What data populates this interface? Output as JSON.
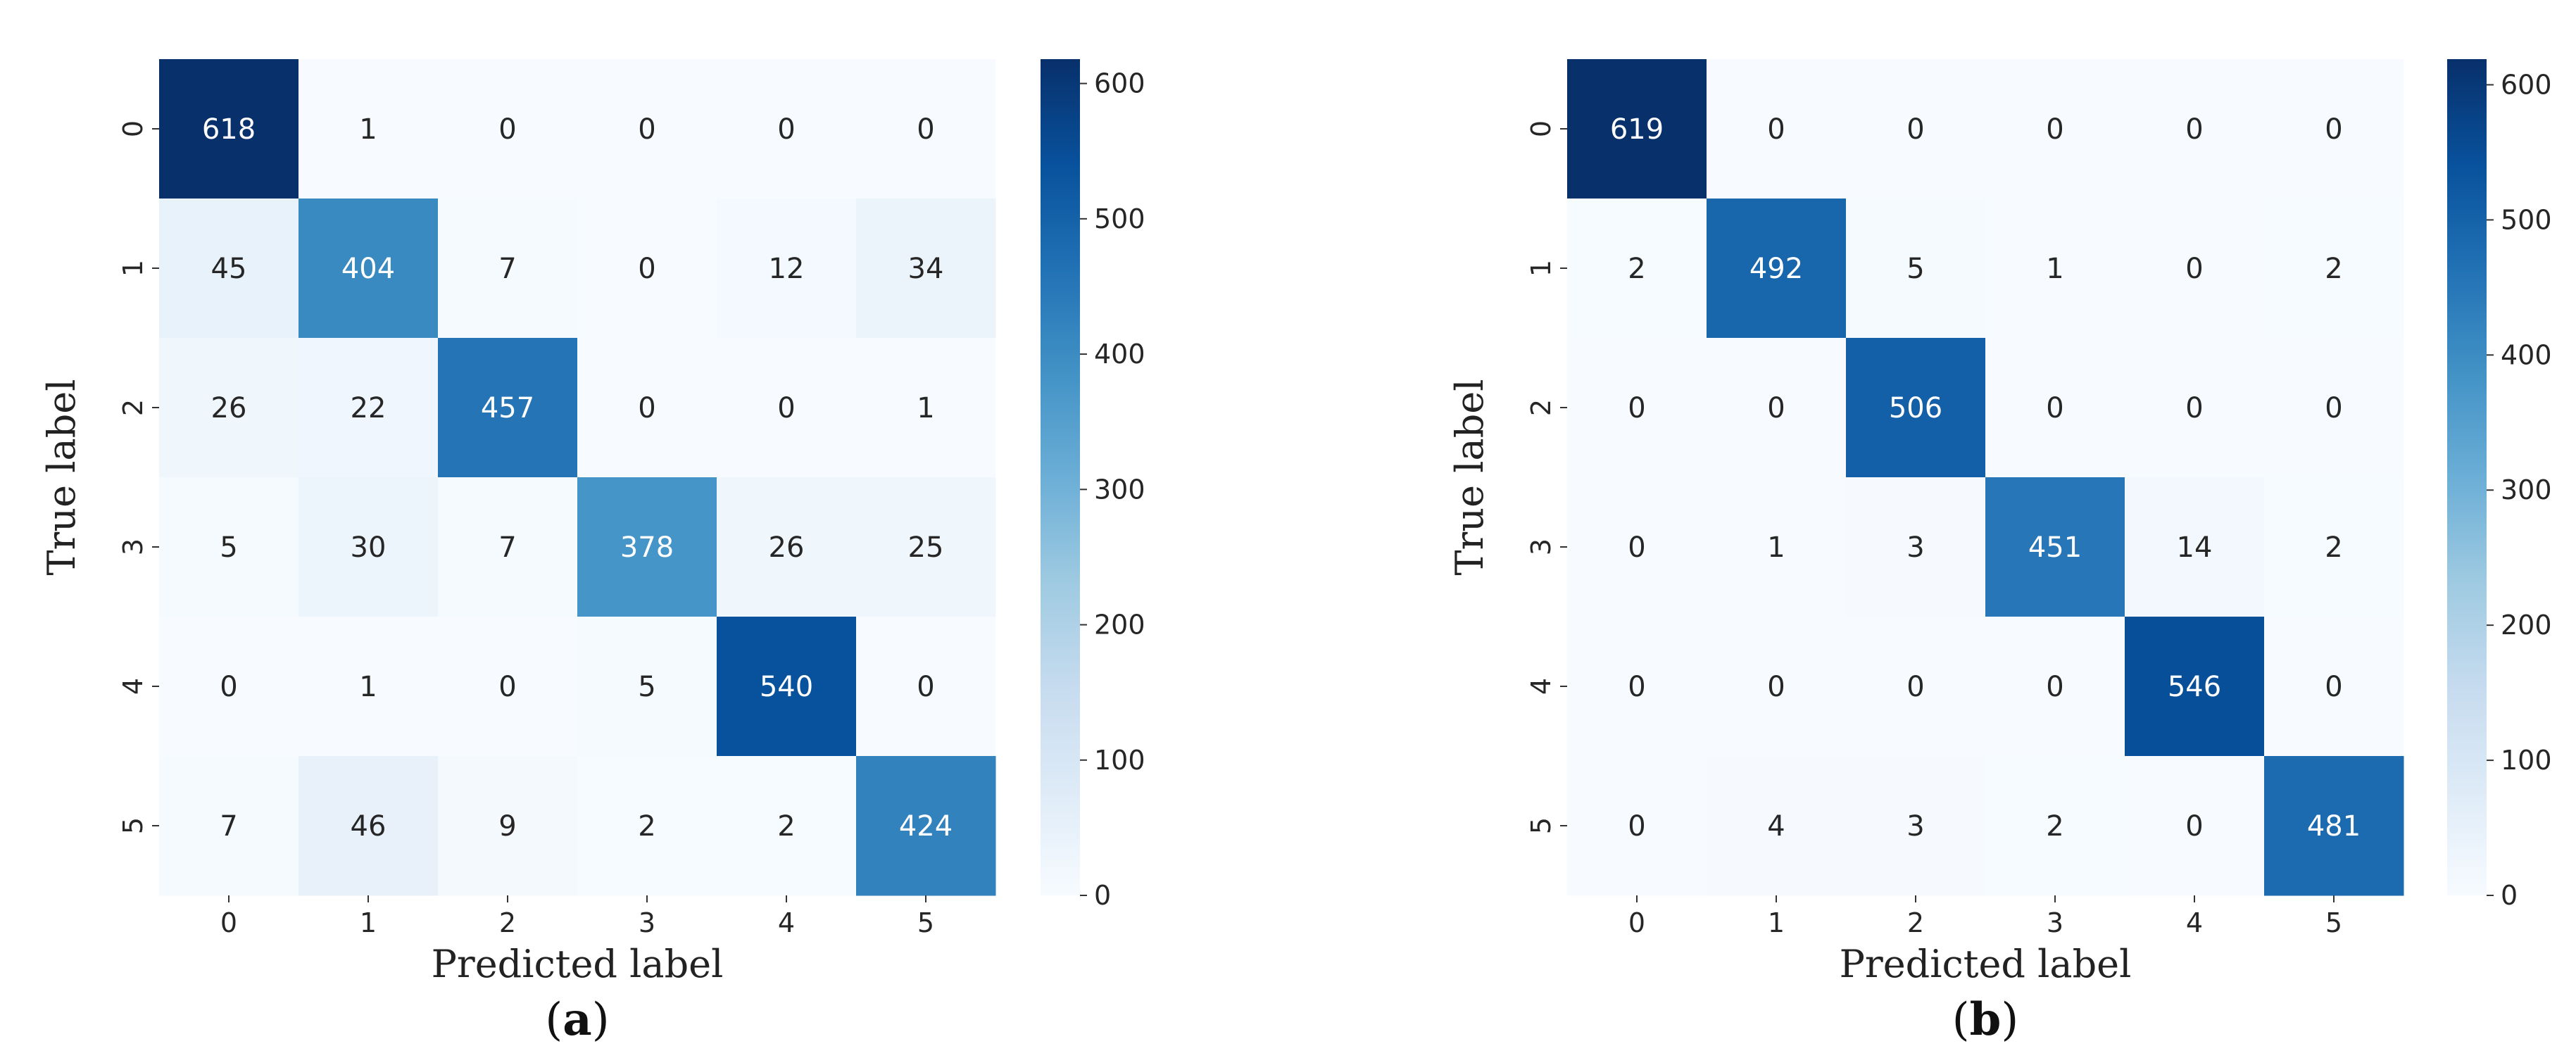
{
  "chart_data": [
    {
      "type": "heatmap",
      "panel_label": "a",
      "xlabel": "Predicted label",
      "ylabel": "True label",
      "x_categories": [
        "0",
        "1",
        "2",
        "3",
        "4",
        "5"
      ],
      "y_categories": [
        "0",
        "1",
        "2",
        "3",
        "4",
        "5"
      ],
      "values": [
        [
          618,
          1,
          0,
          0,
          0,
          0
        ],
        [
          45,
          404,
          7,
          0,
          12,
          34
        ],
        [
          26,
          22,
          457,
          0,
          0,
          1
        ],
        [
          5,
          30,
          7,
          378,
          26,
          25
        ],
        [
          0,
          1,
          0,
          5,
          540,
          0
        ],
        [
          7,
          46,
          9,
          2,
          2,
          424
        ]
      ],
      "colorscale": "Blues",
      "colorbar_range": [
        0,
        618
      ],
      "colorbar_ticks": [
        0,
        100,
        200,
        300,
        400,
        500,
        600
      ]
    },
    {
      "type": "heatmap",
      "panel_label": "b",
      "xlabel": "Predicted label",
      "ylabel": "True label",
      "x_categories": [
        "0",
        "1",
        "2",
        "3",
        "4",
        "5"
      ],
      "y_categories": [
        "0",
        "1",
        "2",
        "3",
        "4",
        "5"
      ],
      "values": [
        [
          619,
          0,
          0,
          0,
          0,
          0
        ],
        [
          2,
          492,
          5,
          1,
          0,
          2
        ],
        [
          0,
          0,
          506,
          0,
          0,
          0
        ],
        [
          0,
          1,
          3,
          451,
          14,
          2
        ],
        [
          0,
          0,
          0,
          0,
          546,
          0
        ],
        [
          0,
          4,
          3,
          2,
          0,
          481
        ]
      ],
      "colorscale": "Blues",
      "colorbar_range": [
        0,
        619
      ],
      "colorbar_ticks": [
        0,
        100,
        200,
        300,
        400,
        500,
        600
      ]
    }
  ]
}
